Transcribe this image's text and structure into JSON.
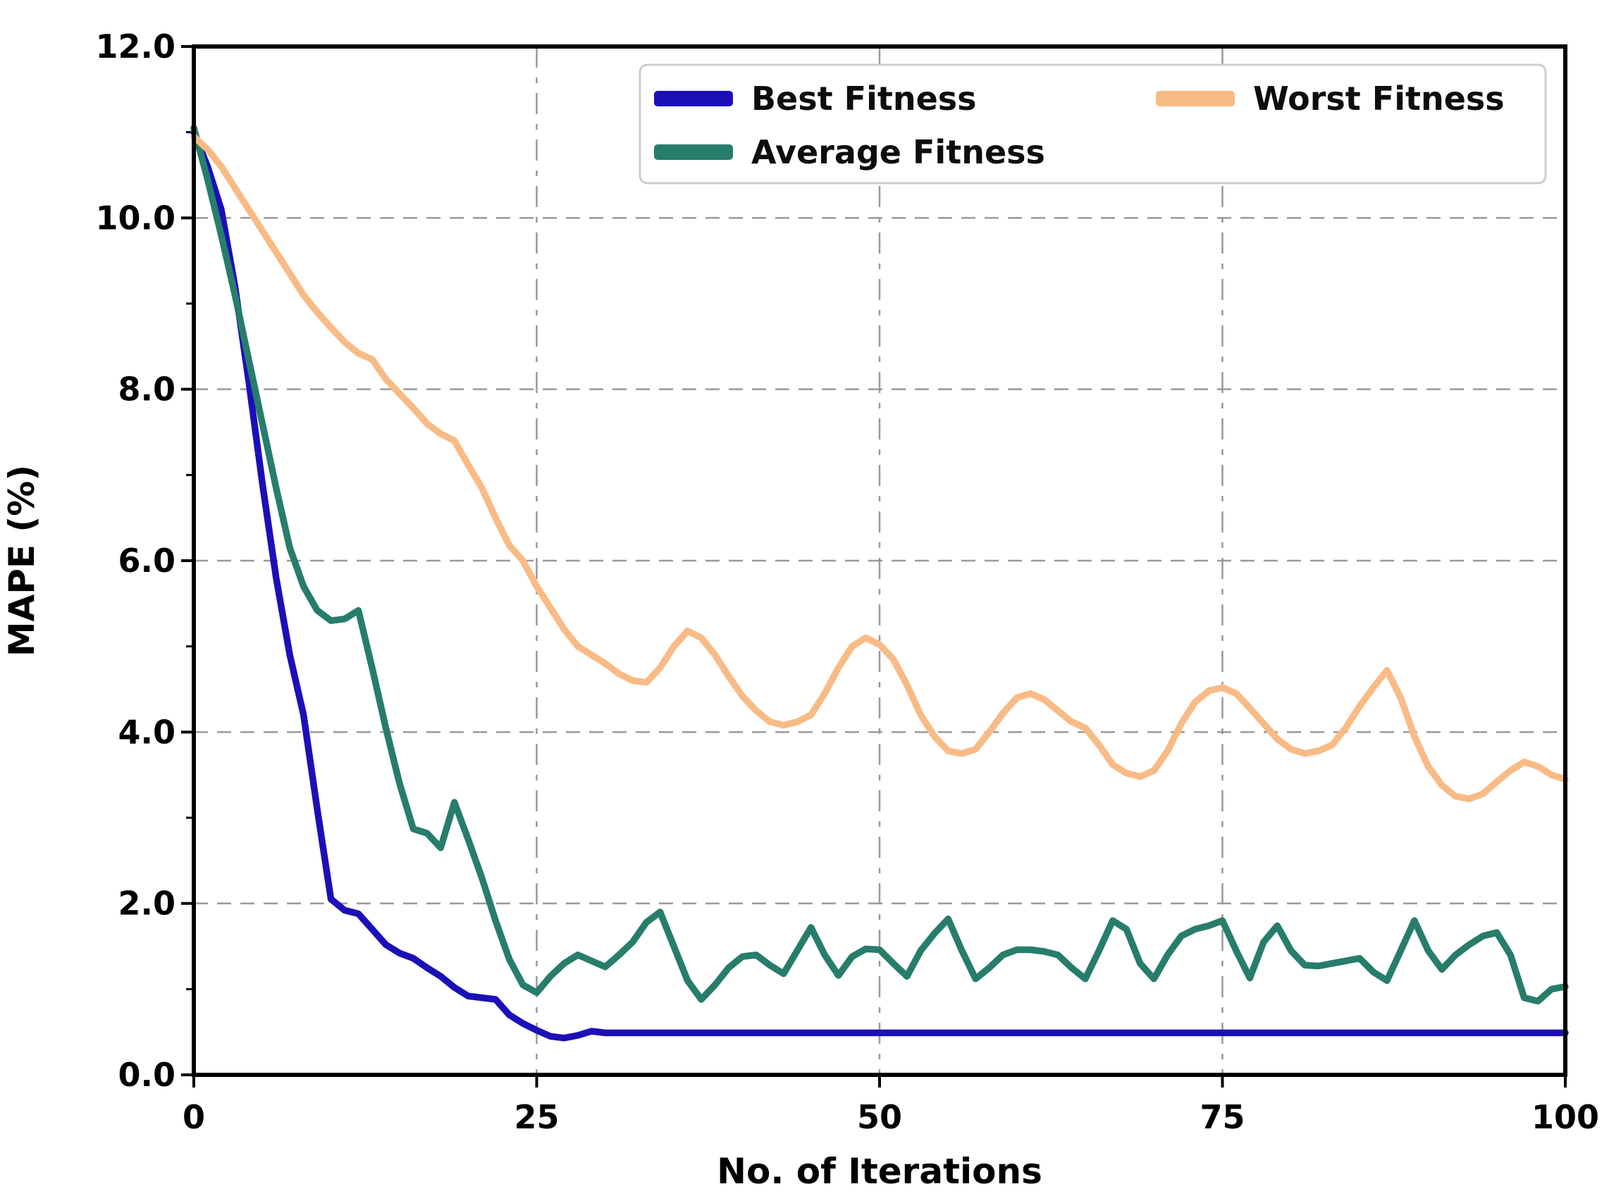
{
  "chart_data": {
    "type": "line",
    "title": "",
    "xlabel": "No. of Iterations",
    "ylabel": "MAPE (%)",
    "xlim": [
      0,
      100
    ],
    "ylim": [
      0,
      12
    ],
    "xticks": [
      0,
      25,
      50,
      75,
      100
    ],
    "xtick_labels": [
      "0",
      "25",
      "50",
      "75",
      "100"
    ],
    "yticks": [
      0,
      2,
      4,
      6,
      8,
      10,
      12
    ],
    "ytick_labels": [
      "0.0",
      "2.0",
      "4.0",
      "6.0",
      "8.0",
      "10.0",
      "12.0"
    ],
    "y_minor_ticks": [
      1,
      3,
      5,
      7,
      9,
      11
    ],
    "grid": "dashed-major-both-axes",
    "grid_color": "#999999",
    "background_color": "#ffffff",
    "spine_color": "#000000",
    "legend_position": "upper-center-2-columns",
    "x": [
      0,
      1,
      2,
      3,
      4,
      5,
      6,
      7,
      8,
      9,
      10,
      11,
      12,
      13,
      14,
      15,
      16,
      17,
      18,
      19,
      20,
      21,
      22,
      23,
      24,
      25,
      26,
      27,
      28,
      29,
      30,
      31,
      32,
      33,
      34,
      35,
      36,
      37,
      38,
      39,
      40,
      41,
      42,
      43,
      44,
      45,
      46,
      47,
      48,
      49,
      50,
      51,
      52,
      53,
      54,
      55,
      56,
      57,
      58,
      59,
      60,
      61,
      62,
      63,
      64,
      65,
      66,
      67,
      68,
      69,
      70,
      71,
      72,
      73,
      74,
      75,
      76,
      77,
      78,
      79,
      80,
      81,
      82,
      83,
      84,
      85,
      86,
      87,
      88,
      89,
      90,
      91,
      92,
      93,
      94,
      95,
      96,
      97,
      98,
      99,
      100
    ],
    "series": [
      {
        "name": "Best Fitness",
        "color": "#1b10b8",
        "values": [
          11.0,
          10.6,
          10.1,
          9.2,
          8.1,
          6.9,
          5.8,
          4.9,
          4.2,
          3.1,
          2.05,
          1.92,
          1.88,
          1.7,
          1.52,
          1.42,
          1.36,
          1.25,
          1.15,
          1.02,
          0.92,
          0.9,
          0.88,
          0.7,
          0.6,
          0.52,
          0.45,
          0.43,
          0.46,
          0.51,
          0.49,
          0.49,
          0.49,
          0.49,
          0.49,
          0.49,
          0.49,
          0.49,
          0.49,
          0.49,
          0.49,
          0.49,
          0.49,
          0.49,
          0.49,
          0.49,
          0.49,
          0.49,
          0.49,
          0.49,
          0.49,
          0.49,
          0.49,
          0.49,
          0.49,
          0.49,
          0.49,
          0.49,
          0.49,
          0.49,
          0.49,
          0.49,
          0.49,
          0.49,
          0.49,
          0.49,
          0.49,
          0.49,
          0.49,
          0.49,
          0.49,
          0.49,
          0.49,
          0.49,
          0.49,
          0.49,
          0.49,
          0.49,
          0.49,
          0.49,
          0.49,
          0.49,
          0.49,
          0.49,
          0.49,
          0.49,
          0.49,
          0.49,
          0.49,
          0.49,
          0.49,
          0.49,
          0.49,
          0.49,
          0.49,
          0.49,
          0.49,
          0.49,
          0.49,
          0.49,
          0.49
        ]
      },
      {
        "name": "Average Fitness",
        "color": "#277d6c",
        "values": [
          11.05,
          10.45,
          9.8,
          9.1,
          8.35,
          7.6,
          6.85,
          6.15,
          5.7,
          5.42,
          5.3,
          5.32,
          5.42,
          4.75,
          4.05,
          3.4,
          2.87,
          2.82,
          2.65,
          3.18,
          2.75,
          2.3,
          1.8,
          1.35,
          1.05,
          0.96,
          1.15,
          1.3,
          1.4,
          1.33,
          1.26,
          1.4,
          1.55,
          1.78,
          1.9,
          1.5,
          1.1,
          0.88,
          1.05,
          1.25,
          1.38,
          1.4,
          1.28,
          1.18,
          1.45,
          1.72,
          1.4,
          1.16,
          1.38,
          1.47,
          1.46,
          1.3,
          1.15,
          1.45,
          1.65,
          1.82,
          1.45,
          1.12,
          1.25,
          1.4,
          1.46,
          1.46,
          1.44,
          1.4,
          1.25,
          1.12,
          1.45,
          1.8,
          1.7,
          1.3,
          1.12,
          1.4,
          1.62,
          1.7,
          1.74,
          1.8,
          1.45,
          1.13,
          1.55,
          1.74,
          1.45,
          1.28,
          1.27,
          1.3,
          1.33,
          1.36,
          1.2,
          1.1,
          1.45,
          1.8,
          1.45,
          1.23,
          1.4,
          1.52,
          1.62,
          1.66,
          1.4,
          0.9,
          0.86,
          1.0,
          1.03
        ]
      },
      {
        "name": "Worst Fitness",
        "color": "#f8bb86",
        "values": [
          10.95,
          10.8,
          10.6,
          10.35,
          10.1,
          9.85,
          9.6,
          9.35,
          9.1,
          8.9,
          8.72,
          8.55,
          8.42,
          8.35,
          8.12,
          7.95,
          7.78,
          7.6,
          7.48,
          7.4,
          7.12,
          6.85,
          6.5,
          6.18,
          6.0,
          5.7,
          5.45,
          5.2,
          5.0,
          4.9,
          4.8,
          4.68,
          4.6,
          4.58,
          4.75,
          5.0,
          5.18,
          5.1,
          4.9,
          4.65,
          4.42,
          4.25,
          4.12,
          4.08,
          4.12,
          4.2,
          4.45,
          4.75,
          5.0,
          5.1,
          5.02,
          4.85,
          4.55,
          4.2,
          3.95,
          3.78,
          3.75,
          3.8,
          4.0,
          4.22,
          4.4,
          4.45,
          4.38,
          4.25,
          4.12,
          4.05,
          3.85,
          3.62,
          3.52,
          3.48,
          3.55,
          3.78,
          4.1,
          4.35,
          4.48,
          4.52,
          4.45,
          4.28,
          4.1,
          3.92,
          3.8,
          3.75,
          3.78,
          3.85,
          4.05,
          4.3,
          4.52,
          4.72,
          4.4,
          3.95,
          3.6,
          3.38,
          3.25,
          3.22,
          3.28,
          3.42,
          3.55,
          3.65,
          3.6,
          3.5,
          3.45
        ]
      }
    ]
  }
}
